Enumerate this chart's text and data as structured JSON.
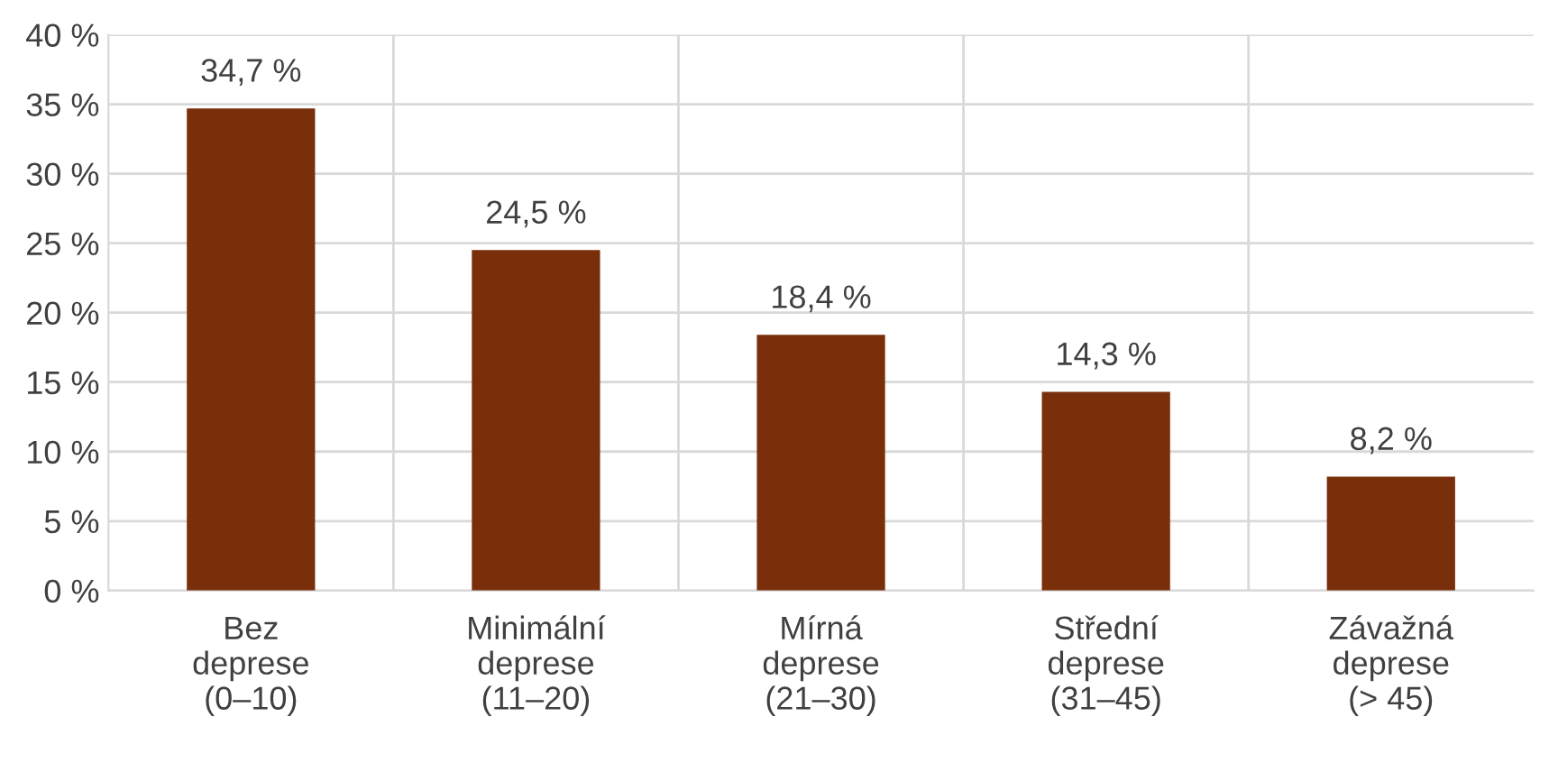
{
  "chart_data": {
    "type": "bar",
    "categories": [
      "Bez\ndeprese\n(0–10)",
      "Minimální\ndeprese\n(11–20)",
      "Mírná\ndeprese\n(21–30)",
      "Střední\ndeprese\n(31–45)",
      "Závažná\ndeprese\n(> 45)"
    ],
    "values": [
      34.7,
      24.5,
      18.4,
      14.3,
      8.2
    ],
    "value_labels": [
      "34,7 %",
      "24,5 %",
      "18,4 %",
      "14,3 %",
      "8,2 %"
    ],
    "color": "#7a2f0b",
    "ylim": [
      0,
      40
    ],
    "yticks": [
      {
        "value": 0,
        "label": "0 %"
      },
      {
        "value": 5,
        "label": "5 %"
      },
      {
        "value": 10,
        "label": "10 %"
      },
      {
        "value": 15,
        "label": "15 %"
      },
      {
        "value": 20,
        "label": "20 %"
      },
      {
        "value": 25,
        "label": "25 %"
      },
      {
        "value": 30,
        "label": "30 %"
      },
      {
        "value": 35,
        "label": "35 %"
      },
      {
        "value": 40,
        "label": "40 %"
      }
    ],
    "grid": true,
    "legend": false
  }
}
